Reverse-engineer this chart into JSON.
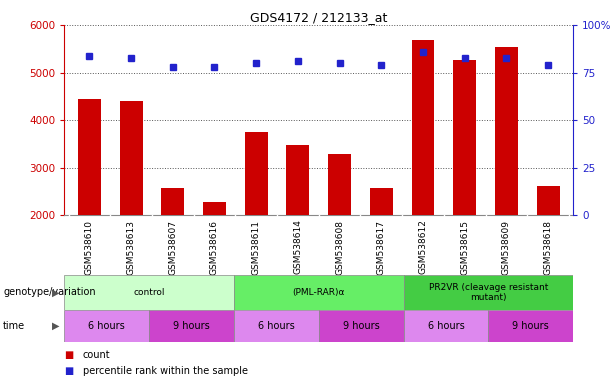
{
  "title": "GDS4172 / 212133_at",
  "samples": [
    "GSM538610",
    "GSM538613",
    "GSM538607",
    "GSM538616",
    "GSM538611",
    "GSM538614",
    "GSM538608",
    "GSM538617",
    "GSM538612",
    "GSM538615",
    "GSM538609",
    "GSM538618"
  ],
  "counts": [
    4450,
    4400,
    2580,
    2280,
    3760,
    3480,
    3300,
    2580,
    5700,
    5270,
    5550,
    2620
  ],
  "percentiles": [
    84,
    83,
    78,
    78,
    80,
    81,
    80,
    79,
    86,
    83,
    83,
    79
  ],
  "ylim_left": [
    2000,
    6000
  ],
  "ylim_right": [
    0,
    100
  ],
  "yticks_left": [
    2000,
    3000,
    4000,
    5000,
    6000
  ],
  "yticks_right": [
    0,
    25,
    50,
    75,
    100
  ],
  "bar_color": "#cc0000",
  "dot_color": "#2222cc",
  "grid_color": "#555555",
  "left_tick_color": "#cc0000",
  "right_tick_color": "#2222cc",
  "groups": [
    {
      "label": "control",
      "start": 0,
      "end": 4,
      "color": "#ccffcc"
    },
    {
      "label": "(PML-RAR)α",
      "start": 4,
      "end": 8,
      "color": "#66ee66"
    },
    {
      "label": "PR2VR (cleavage resistant\nmutant)",
      "start": 8,
      "end": 12,
      "color": "#44cc44"
    }
  ],
  "time_blocks": [
    {
      "label": "6 hours",
      "start": 0,
      "end": 2,
      "color": "#dd88ee"
    },
    {
      "label": "9 hours",
      "start": 2,
      "end": 4,
      "color": "#cc44cc"
    },
    {
      "label": "6 hours",
      "start": 4,
      "end": 6,
      "color": "#dd88ee"
    },
    {
      "label": "9 hours",
      "start": 6,
      "end": 8,
      "color": "#cc44cc"
    },
    {
      "label": "6 hours",
      "start": 8,
      "end": 10,
      "color": "#dd88ee"
    },
    {
      "label": "9 hours",
      "start": 10,
      "end": 12,
      "color": "#cc44cc"
    }
  ],
  "genotype_label": "genotype/variation",
  "time_label": "time",
  "legend_count": "count",
  "legend_percentile": "percentile rank within the sample",
  "bg_color": "#ffffff",
  "plot_bg_color": "#ffffff",
  "label_bg_color": "#dddddd"
}
